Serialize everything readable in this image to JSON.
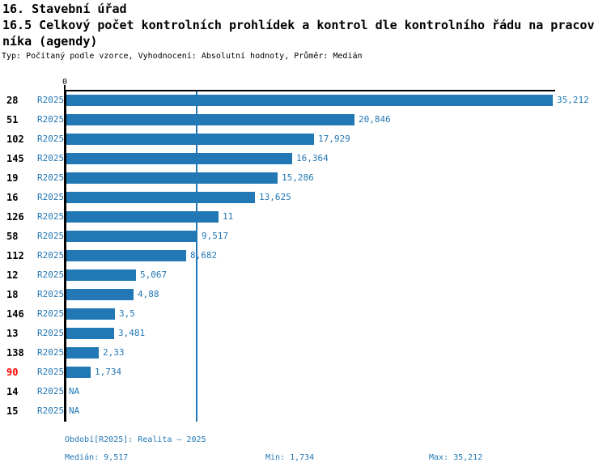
{
  "header": {
    "title_line1": "16. Stavební úřad",
    "title_line2": "16.5 Celkový počet kontrolních prohlídek a kontrol dle kontrolního řádu na pracov",
    "title_line3": "níka (agendy)",
    "subtitle": "Typ: Počítaný podle vzorce, Vyhodnocení: Absolutní hodnoty, Průměr: Medián"
  },
  "chart_data": {
    "type": "bar",
    "orientation": "horizontal",
    "title": "16.5 Celkový počet kontrolních prohlídek a kontrol dle kontrolního řádu na pracovníka (agendy)",
    "origin_tick_label": "0",
    "xlim": [
      0,
      35.212
    ],
    "median_line_value": 9.517,
    "grid": "single median gridline",
    "colors": {
      "bar": "#2278b5",
      "value_text": "#2277b4",
      "row_id_text": "#000000",
      "highlight_row_id_text": "#ff0000",
      "axis": "#000000",
      "median_line": "#2278b5"
    },
    "rows": [
      {
        "id": "28",
        "period": "R2025",
        "value": 35.212,
        "value_label": "35,212",
        "highlight": false
      },
      {
        "id": "51",
        "period": "R2025",
        "value": 20.846,
        "value_label": "20,846",
        "highlight": false
      },
      {
        "id": "102",
        "period": "R2025",
        "value": 17.929,
        "value_label": "17,929",
        "highlight": false
      },
      {
        "id": "145",
        "period": "R2025",
        "value": 16.364,
        "value_label": "16,364",
        "highlight": false
      },
      {
        "id": "19",
        "period": "R2025",
        "value": 15.286,
        "value_label": "15,286",
        "highlight": false
      },
      {
        "id": "16",
        "period": "R2025",
        "value": 13.625,
        "value_label": "13,625",
        "highlight": false
      },
      {
        "id": "126",
        "period": "R2025",
        "value": 11,
        "value_label": "11",
        "highlight": false
      },
      {
        "id": "58",
        "period": "R2025",
        "value": 9.517,
        "value_label": "9,517",
        "highlight": false
      },
      {
        "id": "112",
        "period": "R2025",
        "value": 8.682,
        "value_label": "8,682",
        "highlight": false
      },
      {
        "id": "12",
        "period": "R2025",
        "value": 5.067,
        "value_label": "5,067",
        "highlight": false
      },
      {
        "id": "18",
        "period": "R2025",
        "value": 4.88,
        "value_label": "4,88",
        "highlight": false
      },
      {
        "id": "146",
        "period": "R2025",
        "value": 3.5,
        "value_label": "3,5",
        "highlight": false
      },
      {
        "id": "13",
        "period": "R2025",
        "value": 3.481,
        "value_label": "3,481",
        "highlight": false
      },
      {
        "id": "138",
        "period": "R2025",
        "value": 2.33,
        "value_label": "2,33",
        "highlight": false
      },
      {
        "id": "90",
        "period": "R2025",
        "value": 1.734,
        "value_label": "1,734",
        "highlight": true
      },
      {
        "id": "14",
        "period": "R2025",
        "value": null,
        "value_label": "NA",
        "highlight": false
      },
      {
        "id": "15",
        "period": "R2025",
        "value": null,
        "value_label": "NA",
        "highlight": false
      }
    ]
  },
  "footer": {
    "period_info": "Období[R2025]: Realita – 2025",
    "median": "Medián: 9,517",
    "min": "Min: 1,734",
    "max": "Max: 35,212"
  }
}
